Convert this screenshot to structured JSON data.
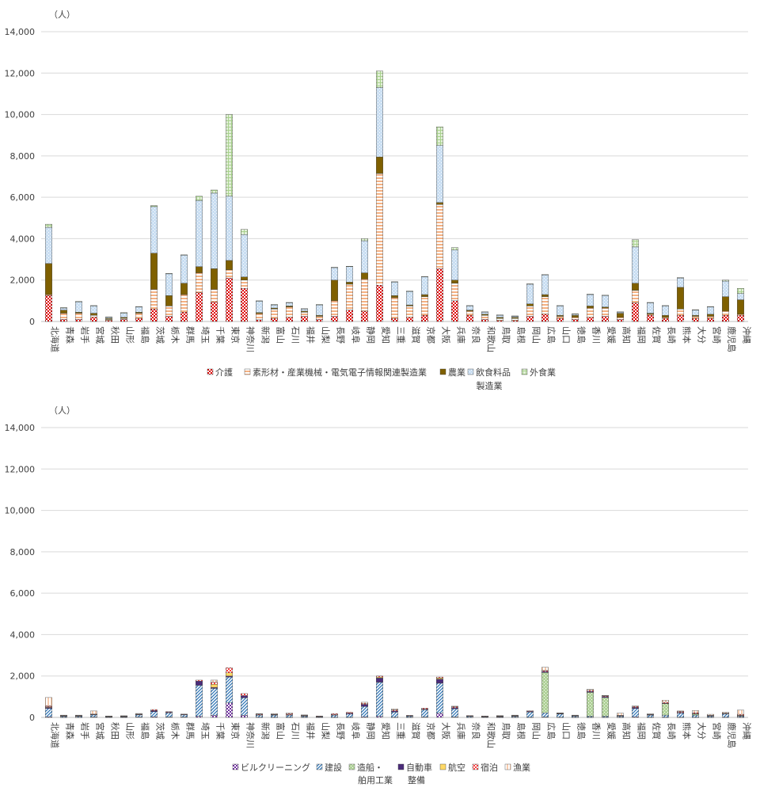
{
  "chart_data": [
    {
      "type": "bar",
      "stacked": true,
      "unit_label": "（人）",
      "ylim": [
        0,
        14000
      ],
      "y_ticks": [
        "0",
        "2,000",
        "4,000",
        "6,000",
        "8,000",
        "10,000",
        "12,000",
        "14,000"
      ],
      "grid": true,
      "legend_position": "bottom",
      "legend_group_label": "製造業",
      "categories": [
        "北海道",
        "青森",
        "岩手",
        "宮城",
        "秋田",
        "山形",
        "福島",
        "茨城",
        "栃木",
        "群馬",
        "埼玉",
        "千葉",
        "東京",
        "神奈川",
        "新潟",
        "富山",
        "石川",
        "福井",
        "山梨",
        "長野",
        "岐阜",
        "静岡",
        "愛知",
        "三重",
        "滋賀",
        "京都",
        "大阪",
        "兵庫",
        "奈良",
        "和歌山",
        "鳥取",
        "島根",
        "岡山",
        "広島",
        "山口",
        "徳島",
        "香川",
        "愛媛",
        "高知",
        "福岡",
        "佐賀",
        "長崎",
        "熊本",
        "大分",
        "宮崎",
        "鹿児島",
        "沖縄"
      ],
      "series": [
        {
          "name": "介護",
          "color": "#e00000",
          "pattern": "checker",
          "values": [
            1250,
            100,
            100,
            200,
            50,
            100,
            150,
            600,
            250,
            450,
            1400,
            950,
            2100,
            1600,
            80,
            150,
            200,
            250,
            100,
            250,
            550,
            500,
            1750,
            150,
            200,
            300,
            2550,
            1000,
            300,
            100,
            50,
            50,
            250,
            350,
            150,
            100,
            200,
            250,
            100,
            900,
            300,
            150,
            300,
            150,
            150,
            300,
            300
          ]
        },
        {
          "name": "素形材・産業機械・電気電子情報関連製造業",
          "color": "#f4b183",
          "pattern": "hstripe",
          "values": [
            50,
            300,
            300,
            100,
            50,
            50,
            250,
            950,
            500,
            850,
            950,
            600,
            400,
            400,
            300,
            450,
            500,
            200,
            150,
            750,
            1250,
            1550,
            5400,
            1000,
            550,
            900,
            3100,
            850,
            200,
            200,
            100,
            100,
            500,
            850,
            100,
            100,
            450,
            400,
            100,
            600,
            50,
            50,
            300,
            100,
            100,
            200,
            50
          ]
        },
        {
          "name": "農業",
          "color": "#7f6000",
          "pattern": "solid",
          "values": [
            1500,
            150,
            50,
            100,
            50,
            50,
            50,
            1750,
            500,
            550,
            300,
            1000,
            450,
            150,
            50,
            50,
            50,
            50,
            50,
            1000,
            100,
            300,
            800,
            100,
            50,
            100,
            100,
            150,
            50,
            50,
            50,
            50,
            100,
            100,
            50,
            100,
            100,
            50,
            200,
            350,
            50,
            100,
            1050,
            50,
            100,
            700,
            700
          ]
        },
        {
          "name": "飲食料品",
          "color": "#9dc3e6",
          "pattern": "dots",
          "values": [
            1750,
            100,
            500,
            350,
            50,
            200,
            250,
            2250,
            1050,
            1350,
            3200,
            3650,
            3100,
            2050,
            550,
            150,
            150,
            100,
            500,
            600,
            750,
            1550,
            3350,
            650,
            650,
            850,
            2750,
            1450,
            200,
            100,
            100,
            50,
            950,
            950,
            450,
            50,
            550,
            550,
            50,
            1750,
            500,
            450,
            450,
            250,
            350,
            750,
            300
          ]
        },
        {
          "name": "外食業",
          "color": "#e2f0d9",
          "pattern": "grid",
          "values": [
            150,
            20,
            20,
            20,
            20,
            30,
            20,
            50,
            20,
            20,
            200,
            150,
            3950,
            250,
            20,
            20,
            20,
            20,
            20,
            20,
            20,
            100,
            800,
            20,
            20,
            20,
            900,
            120,
            20,
            20,
            20,
            20,
            20,
            20,
            20,
            20,
            20,
            20,
            20,
            350,
            20,
            20,
            20,
            20,
            20,
            50,
            250
          ]
        }
      ]
    },
    {
      "type": "bar",
      "stacked": true,
      "unit_label": "（人）",
      "ylim": [
        0,
        14000
      ],
      "y_ticks": [
        "0",
        "2,000",
        "4,000",
        "6,000",
        "8,000",
        "10,000",
        "12,000",
        "14,000"
      ],
      "grid": true,
      "legend_position": "bottom",
      "categories": [
        "北海道",
        "青森",
        "岩手",
        "宮城",
        "秋田",
        "山形",
        "福島",
        "茨城",
        "栃木",
        "群馬",
        "埼玉",
        "千葉",
        "東京",
        "神奈川",
        "新潟",
        "富山",
        "石川",
        "福井",
        "山梨",
        "長野",
        "岐阜",
        "静岡",
        "愛知",
        "三重",
        "滋賀",
        "京都",
        "大阪",
        "兵庫",
        "奈良",
        "和歌山",
        "鳥取",
        "島根",
        "岡山",
        "広島",
        "山口",
        "徳島",
        "香川",
        "愛媛",
        "高知",
        "福岡",
        "佐賀",
        "長崎",
        "熊本",
        "大分",
        "宮崎",
        "鹿児島",
        "沖縄"
      ],
      "series": [
        {
          "name": "ビルクリーニング",
          "color": "#7030a0",
          "pattern": "checker",
          "values": [
            30,
            10,
            10,
            20,
            10,
            10,
            20,
            30,
            20,
            20,
            50,
            100,
            700,
            100,
            10,
            10,
            10,
            10,
            10,
            10,
            10,
            30,
            50,
            10,
            10,
            20,
            200,
            20,
            10,
            10,
            10,
            10,
            10,
            20,
            10,
            10,
            10,
            10,
            10,
            30,
            10,
            10,
            10,
            10,
            10,
            10,
            10
          ]
        },
        {
          "name": "建設",
          "color": "#2e75b6",
          "pattern": "diag",
          "values": [
            400,
            50,
            50,
            100,
            30,
            30,
            100,
            250,
            200,
            100,
            1500,
            1300,
            1250,
            850,
            100,
            100,
            100,
            50,
            30,
            100,
            150,
            500,
            1650,
            250,
            50,
            350,
            1450,
            400,
            50,
            30,
            30,
            50,
            250,
            200,
            150,
            50,
            50,
            50,
            50,
            400,
            100,
            100,
            200,
            100,
            50,
            150,
            50
          ]
        },
        {
          "name": "造船・舶用工業",
          "color": "#70ad47",
          "pattern": "dots",
          "values": [
            0,
            0,
            0,
            0,
            0,
            0,
            0,
            0,
            0,
            0,
            0,
            0,
            0,
            0,
            0,
            0,
            0,
            0,
            0,
            0,
            0,
            0,
            0,
            0,
            0,
            0,
            0,
            0,
            0,
            0,
            0,
            0,
            0,
            1950,
            0,
            0,
            1150,
            900,
            0,
            0,
            0,
            550,
            0,
            50,
            0,
            0,
            0
          ]
        },
        {
          "name": "自動車整備",
          "color": "#4b2c7a",
          "pattern": "solid",
          "values": [
            50,
            10,
            10,
            20,
            10,
            10,
            20,
            50,
            30,
            20,
            200,
            50,
            50,
            100,
            20,
            20,
            20,
            20,
            10,
            20,
            40,
            100,
            200,
            50,
            20,
            30,
            200,
            50,
            10,
            10,
            10,
            10,
            30,
            50,
            20,
            20,
            50,
            50,
            20,
            50,
            20,
            20,
            30,
            20,
            20,
            20,
            20
          ]
        },
        {
          "name": "航空",
          "color": "#ffd966",
          "pattern": "solid",
          "values": [
            30,
            0,
            0,
            0,
            0,
            0,
            0,
            0,
            0,
            0,
            0,
            150,
            150,
            0,
            0,
            0,
            0,
            0,
            0,
            0,
            0,
            0,
            50,
            0,
            0,
            0,
            50,
            0,
            0,
            0,
            0,
            0,
            0,
            0,
            0,
            0,
            0,
            0,
            0,
            0,
            0,
            0,
            0,
            0,
            0,
            0,
            20
          ]
        },
        {
          "name": "宿泊",
          "color": "#ff4040",
          "pattern": "checker",
          "values": [
            50,
            20,
            20,
            20,
            10,
            20,
            20,
            50,
            30,
            20,
            50,
            100,
            250,
            100,
            30,
            20,
            50,
            20,
            20,
            50,
            50,
            50,
            50,
            50,
            20,
            50,
            50,
            50,
            20,
            20,
            20,
            20,
            30,
            50,
            20,
            20,
            50,
            30,
            20,
            50,
            20,
            50,
            50,
            50,
            20,
            20,
            50
          ]
        },
        {
          "name": "漁業",
          "color": "#f8cbad",
          "pattern": "vstripe",
          "values": [
            400,
            20,
            20,
            150,
            10,
            10,
            30,
            0,
            0,
            0,
            0,
            100,
            0,
            0,
            20,
            30,
            30,
            20,
            0,
            0,
            0,
            50,
            0,
            50,
            0,
            0,
            0,
            20,
            0,
            0,
            20,
            20,
            0,
            150,
            20,
            10,
            50,
            20,
            100,
            20,
            20,
            100,
            20,
            100,
            50,
            50,
            200
          ]
        }
      ]
    }
  ]
}
